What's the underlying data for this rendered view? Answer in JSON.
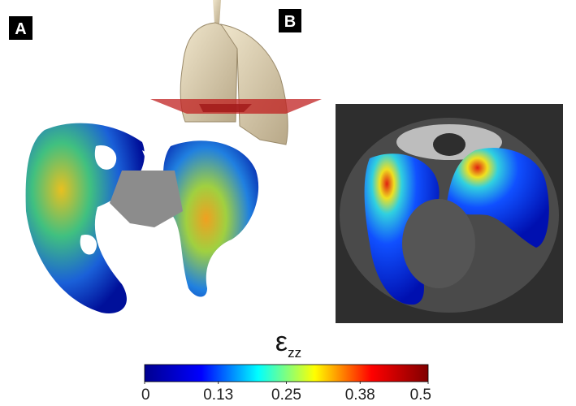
{
  "panels": [
    {
      "label": "A"
    },
    {
      "label": "B"
    }
  ],
  "colorbar": {
    "label": "ε",
    "subscript": "zz",
    "lim": [
      0,
      0.5
    ],
    "ticks": [
      0,
      0.13,
      0.25,
      0.38,
      0.5
    ],
    "colors": [
      "#00008f",
      "#0000ff",
      "#00ffff",
      "#ffff00",
      "#ff0000",
      "#800000"
    ]
  }
}
